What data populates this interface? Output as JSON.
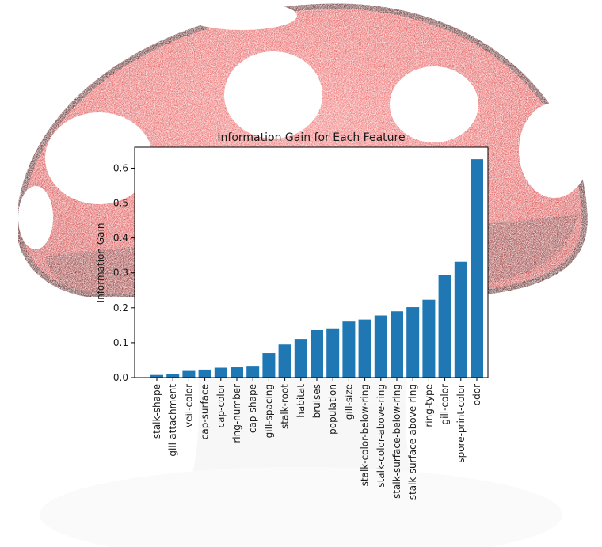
{
  "chart_data": {
    "type": "bar",
    "title": "Information Gain for Each Feature",
    "xlabel": "",
    "ylabel": "Information Gain",
    "ylim": [
      0,
      0.66
    ],
    "yticks": [
      "0.0",
      "0.1",
      "0.2",
      "0.3",
      "0.4",
      "0.5",
      "0.6"
    ],
    "bar_color": "#1f77b4",
    "grid": false,
    "categories": [
      "stalk-shape",
      "gill-attachment",
      "veil-color",
      "cap-surface",
      "cap-color",
      "ring-number",
      "cap-shape",
      "gill-spacing",
      "stalk-root",
      "habitat",
      "bruises",
      "population",
      "gill-size",
      "stalk-color-below-ring",
      "stalk-color-above-ring",
      "stalk-surface-below-ring",
      "stalk-surface-above-ring",
      "ring-type",
      "gill-color",
      "spore-print-color",
      "odor"
    ],
    "values": [
      0.0075,
      0.01,
      0.0191,
      0.0229,
      0.0283,
      0.0294,
      0.0337,
      0.0702,
      0.0947,
      0.1109,
      0.1361,
      0.1412,
      0.1606,
      0.1664,
      0.178,
      0.19,
      0.2017,
      0.2229,
      0.2929,
      0.3317,
      0.6257
    ]
  },
  "background": {
    "mushroom_cap_color": "#e04040",
    "mushroom_rim_color": "#5a1f1f"
  }
}
